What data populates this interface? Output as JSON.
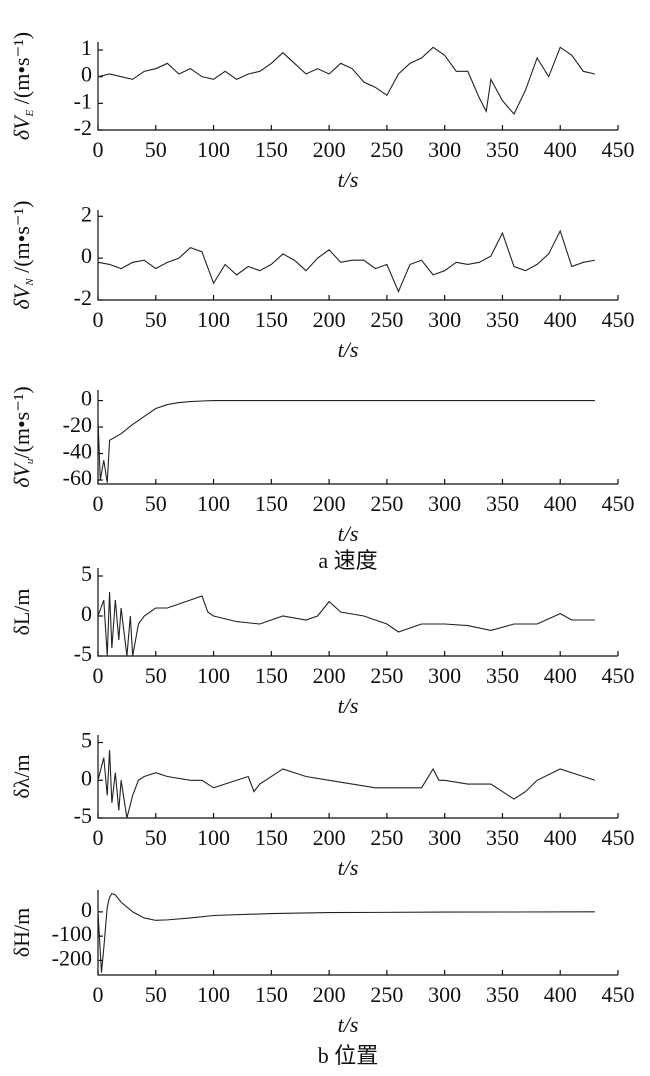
{
  "chart_data": [
    {
      "type": "line",
      "ylabel": "δV",
      "ylabel_sub": "E",
      "ylabel_unit": " /(m•s⁻¹)",
      "xlabel": "t/s",
      "xlim": [
        0,
        450
      ],
      "xticks": [
        0,
        50,
        100,
        150,
        200,
        250,
        300,
        350,
        400,
        450
      ],
      "ylim": [
        -2,
        1.3
      ],
      "yticks": [
        1,
        0,
        -1,
        -2
      ],
      "color": "#222",
      "x": [
        0,
        10,
        20,
        30,
        40,
        50,
        60,
        70,
        80,
        90,
        100,
        110,
        120,
        130,
        140,
        150,
        160,
        170,
        180,
        190,
        200,
        210,
        220,
        230,
        240,
        250,
        260,
        270,
        280,
        290,
        300,
        310,
        320,
        330,
        336,
        340,
        350,
        360,
        370,
        380,
        390,
        400,
        410,
        420,
        430
      ],
      "values": [
        0,
        0.1,
        0,
        -0.1,
        0.2,
        0.3,
        0.5,
        0.1,
        0.3,
        0,
        -0.1,
        0.2,
        -0.1,
        0.1,
        0.2,
        0.5,
        0.9,
        0.5,
        0.1,
        0.3,
        0.1,
        0.5,
        0.3,
        -0.2,
        -0.4,
        -0.7,
        0.1,
        0.5,
        0.7,
        1.1,
        0.8,
        0.2,
        0.2,
        -0.8,
        -1.3,
        -0.1,
        -0.9,
        -1.4,
        -0.5,
        0.7,
        0,
        1.1,
        0.8,
        0.2,
        0.1
      ]
    },
    {
      "type": "line",
      "ylabel": "δV",
      "ylabel_sub": "N",
      "ylabel_unit": " /(m•s⁻¹)",
      "xlabel": "t/s",
      "xlim": [
        0,
        450
      ],
      "xticks": [
        0,
        50,
        100,
        150,
        200,
        250,
        300,
        350,
        400,
        450
      ],
      "ylim": [
        -2,
        2.3
      ],
      "yticks": [
        2,
        0,
        -2
      ],
      "color": "#222",
      "x": [
        0,
        10,
        20,
        30,
        40,
        50,
        60,
        70,
        80,
        90,
        100,
        110,
        120,
        130,
        140,
        150,
        160,
        170,
        180,
        190,
        200,
        210,
        220,
        230,
        240,
        250,
        260,
        270,
        280,
        290,
        300,
        310,
        320,
        330,
        340,
        350,
        360,
        370,
        380,
        390,
        400,
        410,
        420,
        430
      ],
      "values": [
        -0.2,
        -0.3,
        -0.5,
        -0.2,
        -0.1,
        -0.5,
        -0.2,
        0,
        0.5,
        0.3,
        -1.2,
        -0.3,
        -0.8,
        -0.4,
        -0.6,
        -0.3,
        0.2,
        -0.1,
        -0.6,
        0,
        0.4,
        -0.2,
        -0.1,
        -0.1,
        -0.5,
        -0.3,
        -1.6,
        -0.3,
        -0.1,
        -0.8,
        -0.6,
        -0.2,
        -0.3,
        -0.2,
        0.1,
        1.2,
        -0.4,
        -0.6,
        -0.3,
        0.2,
        1.3,
        -0.4,
        -0.2,
        -0.1
      ]
    },
    {
      "type": "line",
      "ylabel": "δV",
      "ylabel_sub": "u",
      "ylabel_unit": "/(m•s⁻¹)",
      "xlabel": "t/s",
      "caption": "a 速度",
      "xlim": [
        0,
        450
      ],
      "xticks": [
        0,
        50,
        100,
        150,
        200,
        250,
        300,
        350,
        400,
        450
      ],
      "ylim": [
        -63,
        8
      ],
      "yticks": [
        0,
        -20,
        -40,
        -60
      ],
      "color": "#222",
      "x": [
        0,
        2,
        5,
        8,
        10,
        20,
        30,
        40,
        50,
        60,
        70,
        80,
        90,
        100,
        150,
        200,
        250,
        300,
        350,
        400,
        430
      ],
      "values": [
        -15,
        -60,
        -45,
        -62,
        -30,
        -25,
        -18,
        -12,
        -6,
        -3,
        -1.5,
        -0.7,
        -0.3,
        0,
        0,
        0,
        0,
        0,
        0,
        0,
        0
      ]
    },
    {
      "type": "line",
      "ylabel": "δL/m",
      "xlabel": "t/s",
      "xlim": [
        0,
        450
      ],
      "xticks": [
        0,
        50,
        100,
        150,
        200,
        250,
        300,
        350,
        400,
        450
      ],
      "ylim": [
        -5,
        6
      ],
      "yticks": [
        5,
        0,
        -5
      ],
      "color": "#222",
      "x": [
        0,
        5,
        8,
        10,
        12,
        15,
        18,
        20,
        25,
        28,
        30,
        35,
        40,
        50,
        60,
        70,
        80,
        90,
        95,
        100,
        120,
        140,
        160,
        180,
        190,
        200,
        210,
        230,
        250,
        260,
        280,
        300,
        320,
        340,
        360,
        380,
        400,
        410,
        430
      ],
      "values": [
        0,
        2,
        -5,
        3,
        -4,
        2,
        -3,
        1,
        -5,
        0,
        -5,
        -1,
        0,
        1,
        1,
        1.5,
        2,
        2.5,
        0.5,
        0,
        -0.7,
        -1,
        0,
        -0.5,
        0,
        1.8,
        0.5,
        0,
        -1,
        -2,
        -1,
        -1,
        -1.2,
        -1.8,
        -1,
        -1,
        0.3,
        -0.5,
        -0.5
      ]
    },
    {
      "type": "line",
      "ylabel": "δλ/m",
      "xlabel": "t/s",
      "xlim": [
        0,
        450
      ],
      "xticks": [
        0,
        50,
        100,
        150,
        200,
        250,
        300,
        350,
        400,
        450
      ],
      "ylim": [
        -5,
        6
      ],
      "yticks": [
        5,
        0,
        -5
      ],
      "color": "#222",
      "x": [
        0,
        5,
        8,
        10,
        12,
        15,
        18,
        20,
        25,
        30,
        35,
        40,
        50,
        60,
        80,
        90,
        100,
        120,
        130,
        135,
        140,
        160,
        180,
        200,
        220,
        240,
        260,
        280,
        290,
        295,
        300,
        320,
        340,
        360,
        370,
        380,
        400,
        410,
        430
      ],
      "values": [
        0,
        3,
        -2,
        4,
        -3,
        1,
        -4,
        0,
        -5,
        -2,
        0,
        0.5,
        1,
        0.5,
        0,
        0,
        -1,
        0,
        0.5,
        -1.5,
        -0.5,
        1.5,
        0.5,
        0,
        -0.5,
        -1,
        -1,
        -1,
        1.5,
        0,
        0,
        -0.5,
        -0.5,
        -2.5,
        -1.5,
        0,
        1.5,
        1,
        0
      ]
    },
    {
      "type": "line",
      "ylabel": "δH/m",
      "xlabel": "t/s",
      "caption": "b 位置",
      "xlim": [
        0,
        450
      ],
      "xticks": [
        0,
        50,
        100,
        150,
        200,
        250,
        300,
        350,
        400,
        450
      ],
      "ylim": [
        -260,
        90
      ],
      "yticks": [
        0,
        -100,
        -200
      ],
      "color": "#222",
      "x": [
        0,
        3,
        5,
        8,
        10,
        12,
        15,
        20,
        30,
        40,
        50,
        60,
        80,
        100,
        150,
        200,
        300,
        430
      ],
      "values": [
        0,
        -250,
        -150,
        20,
        60,
        75,
        70,
        40,
        0,
        -25,
        -35,
        -33,
        -25,
        -15,
        -7,
        -3,
        -1,
        0
      ]
    }
  ]
}
